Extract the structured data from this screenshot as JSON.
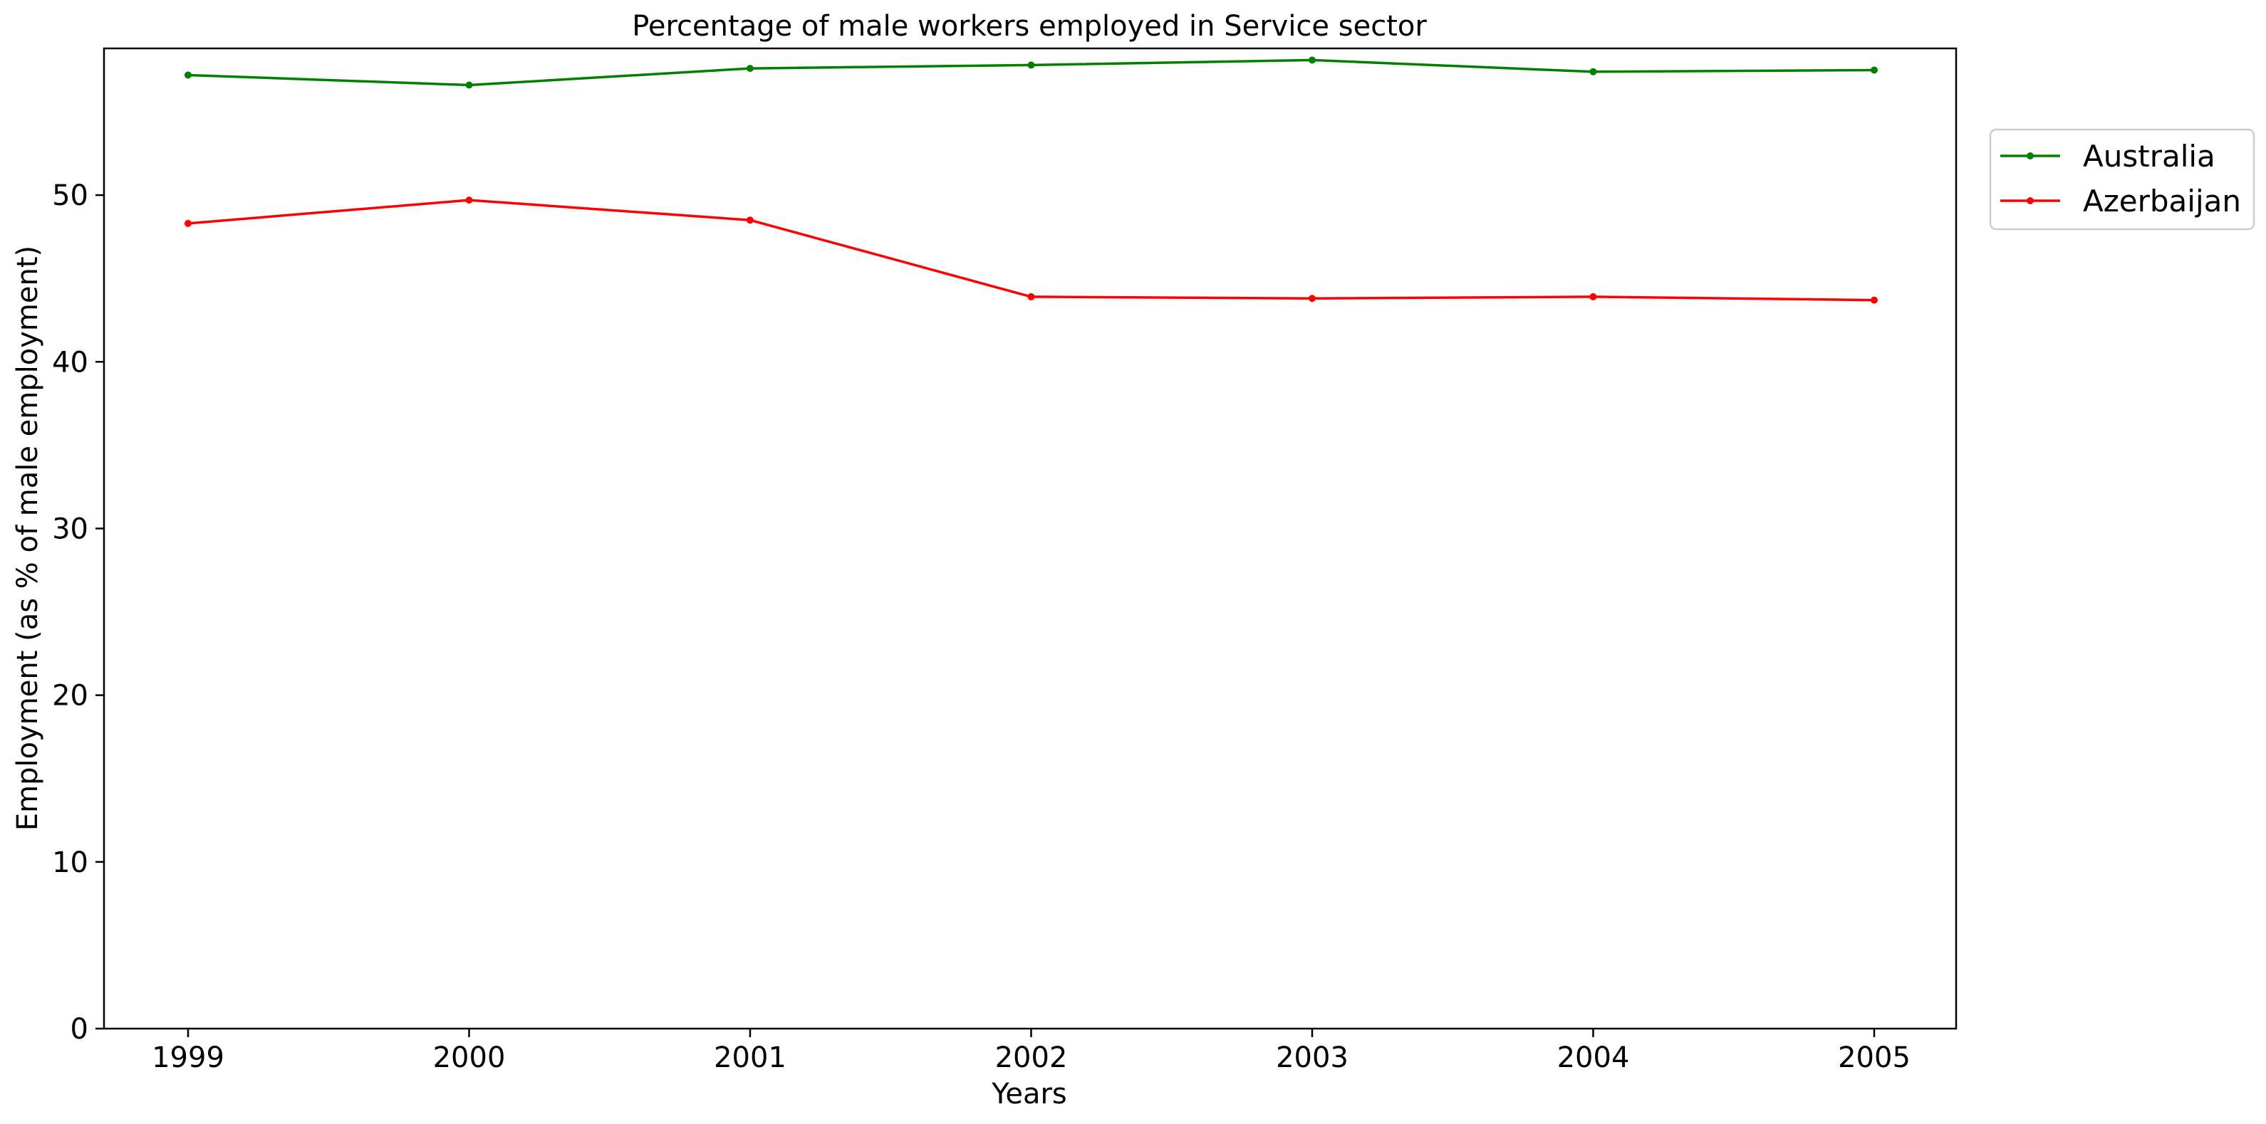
{
  "chart_data": {
    "type": "line",
    "title": "Percentage of male workers employed in Service sector",
    "xlabel": "Years",
    "ylabel": "Employment (as % of male employment)",
    "categories": [
      "1999",
      "2000",
      "2001",
      "2002",
      "2003",
      "2004",
      "2005"
    ],
    "yticks": [
      "0",
      "10",
      "20",
      "30",
      "40",
      "50"
    ],
    "ylim": [
      0,
      58.8
    ],
    "grid": false,
    "legend_position": "outside-right-top",
    "series": [
      {
        "name": "Australia",
        "color": "#008000",
        "values": [
          57.2,
          56.6,
          57.6,
          57.8,
          58.1,
          57.4,
          57.5
        ]
      },
      {
        "name": "Azerbaijan",
        "color": "#ff0000",
        "values": [
          48.3,
          49.7,
          48.5,
          43.9,
          43.8,
          43.9,
          43.7
        ]
      }
    ]
  }
}
